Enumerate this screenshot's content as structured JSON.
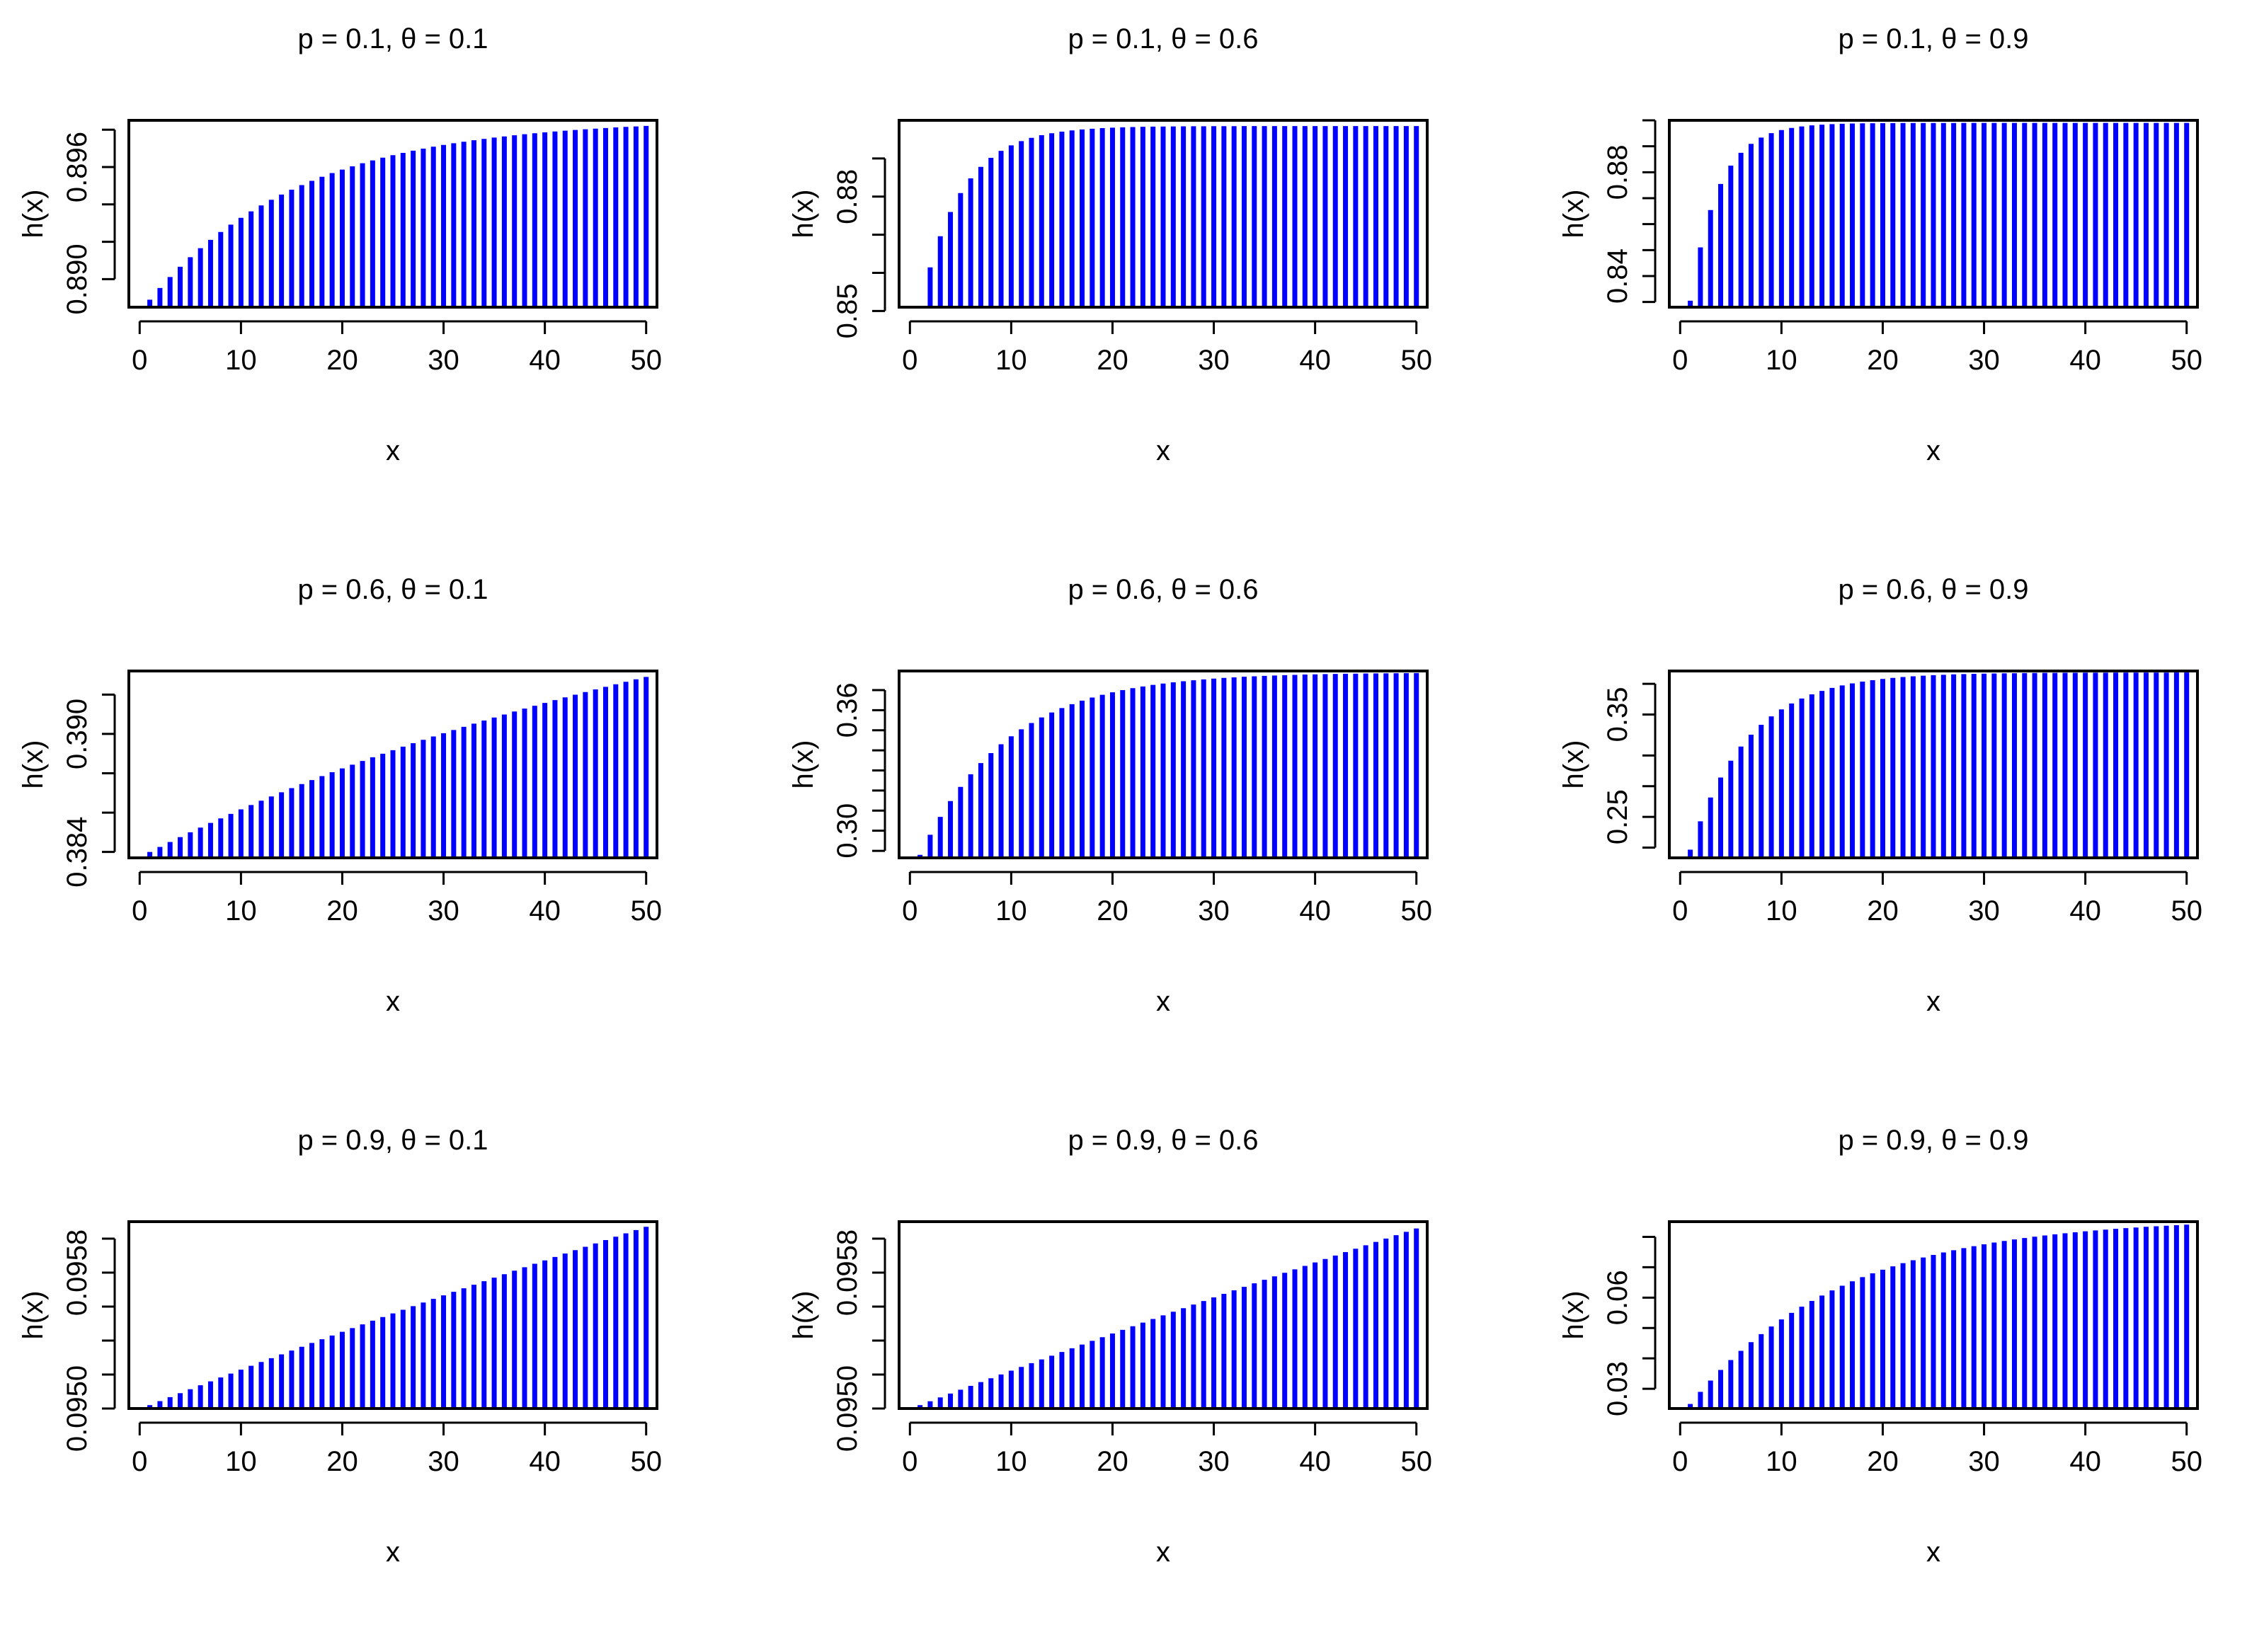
{
  "figure": {
    "bar_color": "#0000ff",
    "axis_color": "#000000",
    "background": "#ffffff"
  },
  "chart_data": [
    {
      "type": "bar",
      "title": "p = 0.1, θ = 0.1",
      "xlabel": "x",
      "ylabel": "h(x)",
      "formula": {
        "p": 0.1,
        "theta": 0.1
      },
      "x": {
        "from": 1,
        "to": 50
      },
      "xlim": [
        0,
        50
      ],
      "ylim": [
        0.8885,
        0.8985
      ],
      "xticks": [
        "0",
        "10",
        "20",
        "30",
        "40",
        "50"
      ],
      "yticks": [
        0.89,
        0.892,
        0.894,
        0.896,
        0.898
      ],
      "ytick_labels": [
        "0.890",
        "",
        "",
        "0.896",
        ""
      ]
    },
    {
      "type": "bar",
      "title": "p = 0.1, θ = 0.6",
      "xlabel": "x",
      "ylabel": "h(x)",
      "formula": {
        "p": 0.1,
        "theta": 0.6
      },
      "x": {
        "from": 1,
        "to": 50
      },
      "xlim": [
        0,
        50
      ],
      "ylim": [
        0.851,
        0.9
      ],
      "xticks": [
        "0",
        "10",
        "20",
        "30",
        "40",
        "50"
      ],
      "yticks": [
        0.85,
        0.86,
        0.87,
        0.88,
        0.89
      ],
      "ytick_labels": [
        "0.85",
        "",
        "",
        "0.88",
        ""
      ]
    },
    {
      "type": "bar",
      "title": "p = 0.1, θ = 0.9",
      "xlabel": "x",
      "ylabel": "h(x)",
      "formula": {
        "p": 0.1,
        "theta": 0.9
      },
      "x": {
        "from": 1,
        "to": 50
      },
      "xlim": [
        0,
        50
      ],
      "ylim": [
        0.828,
        0.9
      ],
      "xticks": [
        "0",
        "10",
        "20",
        "30",
        "40",
        "50"
      ],
      "yticks": [
        0.83,
        0.84,
        0.85,
        0.86,
        0.87,
        0.88,
        0.89,
        0.9
      ],
      "ytick_labels": [
        "",
        "0.84",
        "",
        "",
        "",
        "0.88",
        "",
        ""
      ]
    },
    {
      "type": "bar",
      "title": "p = 0.6, θ = 0.1",
      "xlabel": "x",
      "ylabel": "h(x)",
      "formula": {
        "p": 0.6,
        "theta": 0.1
      },
      "x": {
        "from": 1,
        "to": 50
      },
      "xlim": [
        0,
        50
      ],
      "ylim": [
        0.3837,
        0.3932
      ],
      "xticks": [
        "0",
        "10",
        "20",
        "30",
        "40",
        "50"
      ],
      "yticks": [
        0.384,
        0.386,
        0.388,
        0.39,
        0.392
      ],
      "ytick_labels": [
        "0.384",
        "",
        "",
        "0.390",
        ""
      ]
    },
    {
      "type": "bar",
      "title": "p = 0.6, θ = 0.6",
      "xlabel": "x",
      "ylabel": "h(x)",
      "formula": {
        "p": 0.6,
        "theta": 0.6
      },
      "x": {
        "from": 1,
        "to": 50
      },
      "xlim": [
        0,
        50
      ],
      "ylim": [
        0.2865,
        0.3795
      ],
      "xticks": [
        "0",
        "10",
        "20",
        "30",
        "40",
        "50"
      ],
      "yticks": [
        0.29,
        0.3,
        0.31,
        0.32,
        0.33,
        0.34,
        0.35,
        0.36,
        0.37
      ],
      "ytick_labels": [
        "",
        "0.30",
        "",
        "",
        "",
        "",
        "",
        "0.36",
        ""
      ]
    },
    {
      "type": "bar",
      "title": "p = 0.6, θ = 0.9",
      "xlabel": "x",
      "ylabel": "h(x)",
      "formula": {
        "p": 0.6,
        "theta": 0.9
      },
      "x": {
        "from": 1,
        "to": 50
      },
      "xlim": [
        0,
        50
      ],
      "ylim": [
        0.21,
        0.3925
      ],
      "xticks": [
        "0",
        "10",
        "20",
        "30",
        "40",
        "50"
      ],
      "yticks": [
        0.22,
        0.25,
        0.28,
        0.31,
        0.35,
        0.38
      ],
      "ytick_labels": [
        "",
        "0.25",
        "",
        "",
        "0.35",
        ""
      ]
    },
    {
      "type": "bar",
      "title": "p = 0.9, θ = 0.1",
      "xlabel": "x",
      "ylabel": "h(x)",
      "formula": {
        "p": 0.9,
        "theta": 0.1
      },
      "x": {
        "from": 1,
        "to": 50
      },
      "xlim": [
        0,
        50
      ],
      "ylim": [
        0.095,
        0.0961
      ],
      "xticks": [
        "0",
        "10",
        "20",
        "30",
        "40",
        "50"
      ],
      "yticks": [
        0.095,
        0.0952,
        0.0954,
        0.0956,
        0.0958,
        0.096
      ],
      "ytick_labels": [
        "0.0950",
        "",
        "",
        "",
        "0.0958",
        ""
      ]
    },
    {
      "type": "bar",
      "title": "p = 0.9, θ = 0.6",
      "xlabel": "x",
      "ylabel": "h(x)",
      "formula": {
        "p": 0.9,
        "theta": 0.6
      },
      "x": {
        "from": 1,
        "to": 50
      },
      "xlim": [
        0,
        50
      ],
      "ylim": [
        0.095,
        0.0961
      ],
      "xticks": [
        "0",
        "10",
        "20",
        "30",
        "40",
        "50"
      ],
      "yticks": [
        0.095,
        0.0952,
        0.0954,
        0.0956,
        0.0958,
        0.096
      ],
      "ytick_labels": [
        "0.0950",
        "",
        "",
        "",
        "0.0958",
        ""
      ]
    },
    {
      "type": "bar",
      "title": "p = 0.9, θ = 0.9",
      "xlabel": "x",
      "ylabel": "h(x)",
      "formula": {
        "p": 0.9,
        "theta": 0.9
      },
      "x": {
        "from": 1,
        "to": 50
      },
      "xlim": [
        0,
        50
      ],
      "ylim": [
        0.0235,
        0.085
      ],
      "xticks": [
        "0",
        "10",
        "20",
        "30",
        "40",
        "50"
      ],
      "yticks": [
        0.03,
        0.04,
        0.05,
        0.06,
        0.07,
        0.08
      ],
      "ytick_labels": [
        "0.03",
        "",
        "",
        "0.06",
        "",
        ""
      ]
    }
  ]
}
